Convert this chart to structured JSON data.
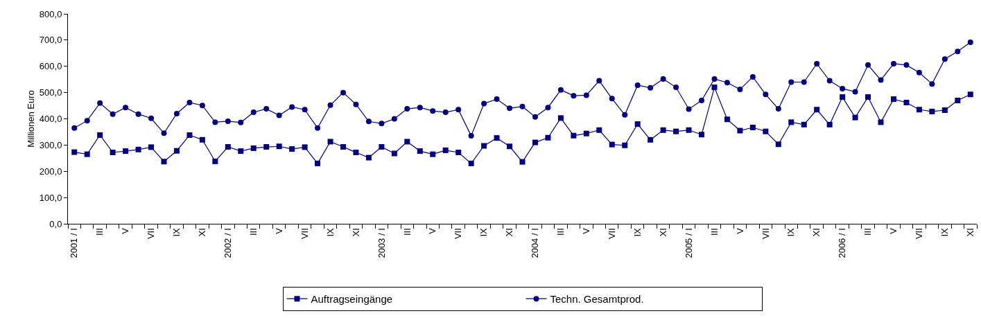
{
  "chart_data": {
    "type": "line",
    "ylabel": "Millionen Euro",
    "categories": [
      "2001 / I",
      null,
      "III",
      null,
      "V",
      null,
      "VII",
      null,
      "IX",
      null,
      "XI",
      null,
      "2002 / I",
      null,
      "III",
      null,
      "V",
      null,
      "VII",
      null,
      "IX",
      null,
      "XI",
      null,
      "2003 / I",
      null,
      "III",
      null,
      "V",
      null,
      "VII",
      null,
      "IX",
      null,
      "XI",
      null,
      "2004 / I",
      null,
      "III",
      null,
      "V",
      null,
      "VII",
      null,
      "IX",
      null,
      "XI",
      null,
      "2005 / I",
      null,
      "III",
      null,
      "V",
      null,
      "VII",
      null,
      "IX",
      null,
      "XI",
      null,
      "2006 / I",
      null,
      "III",
      null,
      "V",
      null,
      "VII",
      null,
      "IX",
      null,
      "XI"
    ],
    "series": [
      {
        "name": "Auftragseingänge",
        "color": "#000080",
        "marker": "square",
        "values": [
          273,
          265,
          338,
          272,
          277,
          283,
          292,
          237,
          278,
          338,
          320,
          238,
          293,
          277,
          288,
          293,
          295,
          285,
          292,
          230,
          313,
          293,
          272,
          252,
          293,
          268,
          313,
          277,
          265,
          280,
          272,
          230,
          297,
          327,
          295,
          236,
          310,
          328,
          403,
          336,
          344,
          357,
          302,
          299,
          380,
          320,
          357,
          352,
          357,
          340,
          520,
          398,
          355,
          367,
          352,
          303,
          387,
          378,
          435,
          378,
          483,
          405,
          483,
          387,
          475,
          462,
          435,
          428,
          433,
          470,
          493
        ]
      },
      {
        "name": "Techn. Gesamtprod.",
        "color": "#000080",
        "marker": "circle",
        "values": [
          365,
          393,
          460,
          418,
          443,
          418,
          402,
          345,
          420,
          462,
          451,
          387,
          391,
          386,
          425,
          438,
          413,
          445,
          435,
          365,
          452,
          500,
          455,
          390,
          382,
          400,
          438,
          443,
          430,
          425,
          435,
          335,
          458,
          475,
          440,
          447,
          407,
          443,
          510,
          488,
          490,
          545,
          477,
          415,
          528,
          518,
          552,
          520,
          437,
          470,
          552,
          538,
          512,
          560,
          493,
          438,
          540,
          540,
          610,
          545,
          515,
          503,
          605,
          548,
          610,
          605,
          576,
          533,
          628,
          657,
          692
        ]
      }
    ],
    "ylim": [
      0,
      800
    ],
    "yticks": [
      {
        "value": 0,
        "label": "0,0"
      },
      {
        "value": 100,
        "label": "100,0"
      },
      {
        "value": 200,
        "label": "200,0"
      },
      {
        "value": 300,
        "label": "300,0"
      },
      {
        "value": 400,
        "label": "400,0"
      },
      {
        "value": 500,
        "label": "500,0"
      },
      {
        "value": 600,
        "label": "600,0"
      },
      {
        "value": 700,
        "label": "700,0"
      },
      {
        "value": 800,
        "label": "800,0"
      }
    ],
    "grid": false,
    "legend": "bottom",
    "line_style": "solid"
  }
}
